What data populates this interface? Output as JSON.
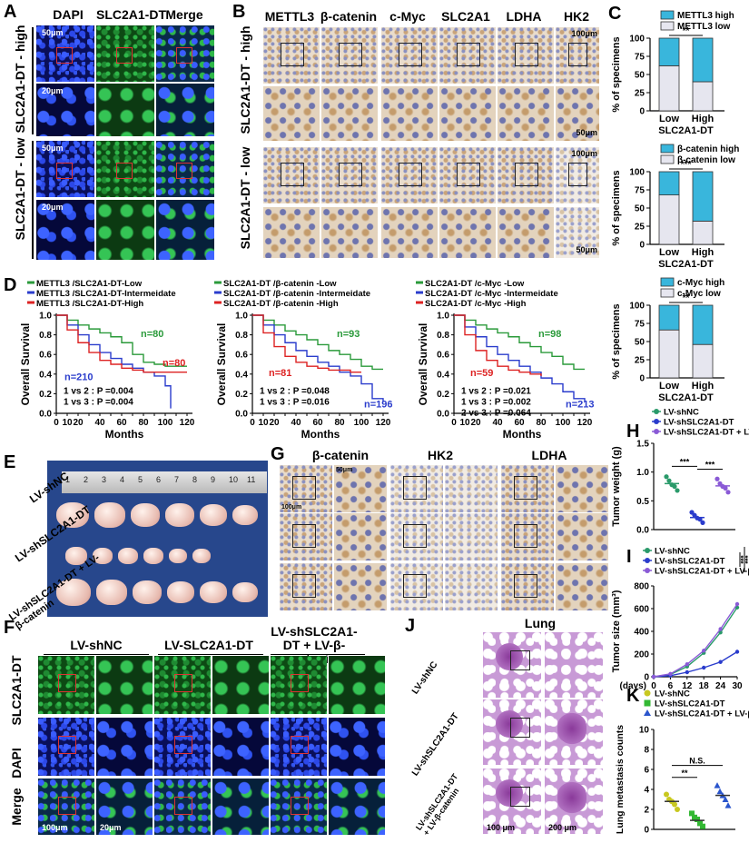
{
  "panels": {
    "A": "A",
    "B": "B",
    "C": "C",
    "D": "D",
    "E": "E",
    "F": "F",
    "G": "G",
    "H": "H",
    "I": "I",
    "J": "J",
    "K": "K"
  },
  "panelA": {
    "columns": [
      "DAPI",
      "SLC2A1-DT",
      "Merge"
    ],
    "rows": [
      "SLC2A1-DT - high",
      "SLC2A1-DT - low"
    ],
    "scale_main": "50μm",
    "scale_zoom": "20μm"
  },
  "panelB": {
    "columns": [
      "METTL3",
      "β-catenin",
      "c-Myc",
      "SLC2A1",
      "LDHA",
      "HK2"
    ],
    "rows": [
      "SLC2A1-DT - high",
      "SLC2A1-DT - low"
    ],
    "scale_main": "100μm",
    "scale_zoom": "50μm"
  },
  "panelC": {
    "ylabel": "% of specimens",
    "xlabel": "SLC2A1-DT",
    "colors": {
      "high": "#39b6dc",
      "low": "#e6e6ef"
    },
    "charts": [
      {
        "legend_high": "METTL3 high",
        "legend_low": "METTL3 low",
        "sig": "**"
      },
      {
        "legend_high": "β-catenin high",
        "legend_low": "β-catenin low",
        "sig": "***"
      },
      {
        "legend_high": "c-Myc high",
        "legend_low": "c-Myc low",
        "sig": "**"
      }
    ]
  },
  "panelD": {
    "ylabel": "Overall Survival",
    "xlabel": "Months",
    "plots": [
      {
        "legend": [
          "METTL3 /SLC2A1-DT-Low",
          "METTL3 /SLC2A1-DT-Intermeidate",
          "METTL3 /SLC2A1-DT-High"
        ],
        "n_low": "n=80",
        "n_int": "n=210",
        "n_high": "n=80",
        "stats": [
          "1 vs 2 : P =0.004",
          "1 vs 3 : P =0.004"
        ]
      },
      {
        "legend": [
          "SLC2A1-DT /β-catenin -Low",
          "SLC2A1-DT /β-catenin -Intermeidate",
          "SLC2A1-DT /β-catenin -High"
        ],
        "n_low": "n=93",
        "n_int": "n=196",
        "n_high": "n=81",
        "stats": [
          "1 vs 2 : P =0.048",
          "1 vs 3 : P =0.016"
        ]
      },
      {
        "legend": [
          "SLC2A1-DT /c-Myc -Low",
          "SLC2A1-DT /c-Myc -Intermeidate",
          "SLC2A1-DT /c-Myc -High"
        ],
        "n_low": "n=98",
        "n_int": "n=213",
        "n_high": "n=59",
        "stats": [
          "1 vs 2 : P =0.021",
          "1 vs 3 : P =0.002",
          "2 vs 3 : P =0.064"
        ]
      }
    ]
  },
  "panelE": {
    "rows": [
      "LV-shNC",
      "LV-shSLC2A1-DT",
      "LV-shSLC2A1-DT + LV-β-catenin"
    ],
    "ruler": [
      "1",
      "2",
      "3",
      "4",
      "5",
      "6",
      "7",
      "8",
      "9",
      "10",
      "11"
    ]
  },
  "panelF": {
    "columns": [
      "LV-shNC",
      "LV-SLC2A1-DT",
      "LV-shSLC2A1-DT + LV-β-catenin"
    ],
    "rows": [
      "SLC2A1-DT",
      "DAPI",
      "Merge"
    ],
    "scale_main": "100μm",
    "scale_zoom": "20μm"
  },
  "panelG": {
    "columns": [
      "β-catenin",
      "HK2",
      "LDHA"
    ],
    "scale_main": "100μm",
    "scale_zoom": "50μm"
  },
  "panelH": {
    "legend": [
      "LV-shNC",
      "LV-shSLC2A1-DT",
      "LV-shSLC2A1-DT + LV-β-catenin"
    ],
    "ylabel": "Tumor weight (g)",
    "sig": [
      "***",
      "***"
    ]
  },
  "panelI": {
    "legend": [
      "LV-shNC",
      "LV-shSLC2A1-DT",
      "LV-shSLC2A1-DT + LV-β-catenin"
    ],
    "ylabel": "Tumor size (mm³)",
    "xlabel": "(days)",
    "sig": [
      "***",
      "***"
    ]
  },
  "panelJ": {
    "title": "Lung",
    "rows": [
      "LV-shNC",
      "LV-shSLC2A1-DT",
      "LV-shSLC2A1-DT + LV-β-catenin"
    ],
    "scale_main": "100 μm",
    "scale_zoom": "200 μm"
  },
  "panelK": {
    "legend": [
      "LV-shNC",
      "LV-shSLC2A1-DT",
      "LV-shSLC2A1-DT + LV-β-catenin"
    ],
    "ylabel": "Lung metastasis counts",
    "sig": [
      "**",
      "N.S."
    ]
  },
  "chart_data": [
    {
      "type": "bar",
      "panel": "C1",
      "categories": [
        "Low",
        "High"
      ],
      "series": [
        {
          "name": "METTL3 low",
          "values": [
            62,
            40
          ]
        },
        {
          "name": "METTL3 high",
          "values": [
            38,
            60
          ]
        }
      ],
      "ylabel": "% of specimens",
      "xlabel": "SLC2A1-DT",
      "ylim": [
        0,
        100
      ],
      "ticks": [
        "0",
        "25",
        "50",
        "75",
        "100"
      ]
    },
    {
      "type": "bar",
      "panel": "C2",
      "categories": [
        "Low",
        "High"
      ],
      "series": [
        {
          "name": "β-catenin low",
          "values": [
            68,
            32
          ]
        },
        {
          "name": "β-catenin high",
          "values": [
            32,
            68
          ]
        }
      ],
      "ylabel": "% of specimens",
      "xlabel": "SLC2A1-DT",
      "ylim": [
        0,
        100
      ],
      "ticks": [
        "0",
        "25",
        "50",
        "75",
        "100"
      ]
    },
    {
      "type": "bar",
      "panel": "C3",
      "categories": [
        "Low",
        "High"
      ],
      "series": [
        {
          "name": "c-Myc low",
          "values": [
            66,
            46
          ]
        },
        {
          "name": "c-Myc high",
          "values": [
            34,
            54
          ]
        }
      ],
      "ylabel": "% of specimens",
      "xlabel": "SLC2A1-DT",
      "ylim": [
        0,
        100
      ],
      "ticks": [
        "0",
        "25",
        "50",
        "75",
        "100"
      ]
    },
    {
      "type": "line",
      "panel": "D-survival",
      "x_ticks": [
        "0",
        "10",
        "20",
        "30",
        "40",
        "50",
        "60",
        "70",
        "80",
        "90",
        "100",
        "110",
        "120"
      ],
      "y_ticks": [
        "0.0",
        "0.2",
        "0.4",
        "0.6",
        "0.8",
        "1.0"
      ],
      "curves": [
        {
          "low": [
            [
              0,
              1
            ],
            [
              10,
              0.95
            ],
            [
              20,
              0.9
            ],
            [
              30,
              0.86
            ],
            [
              40,
              0.82
            ],
            [
              50,
              0.78
            ],
            [
              60,
              0.72
            ],
            [
              70,
              0.6
            ],
            [
              80,
              0.52
            ],
            [
              90,
              0.5
            ],
            [
              100,
              0.48
            ],
            [
              110,
              0.48
            ],
            [
              120,
              0.48
            ]
          ],
          "int": [
            [
              0,
              1
            ],
            [
              10,
              0.9
            ],
            [
              20,
              0.8
            ],
            [
              30,
              0.7
            ],
            [
              40,
              0.62
            ],
            [
              50,
              0.56
            ],
            [
              60,
              0.5
            ],
            [
              70,
              0.46
            ],
            [
              80,
              0.42
            ],
            [
              90,
              0.38
            ],
            [
              100,
              0.28
            ],
            [
              105,
              0.05
            ]
          ],
          "high": [
            [
              0,
              1
            ],
            [
              10,
              0.85
            ],
            [
              20,
              0.72
            ],
            [
              30,
              0.62
            ],
            [
              40,
              0.54
            ],
            [
              50,
              0.5
            ],
            [
              60,
              0.46
            ],
            [
              70,
              0.44
            ],
            [
              80,
              0.42
            ],
            [
              90,
              0.42
            ],
            [
              100,
              0.42
            ],
            [
              120,
              0.42
            ]
          ]
        },
        {
          "low": [
            [
              0,
              1
            ],
            [
              10,
              0.95
            ],
            [
              20,
              0.9
            ],
            [
              30,
              0.84
            ],
            [
              40,
              0.8
            ],
            [
              50,
              0.75
            ],
            [
              60,
              0.7
            ],
            [
              70,
              0.64
            ],
            [
              80,
              0.6
            ],
            [
              90,
              0.55
            ],
            [
              100,
              0.48
            ],
            [
              110,
              0.45
            ],
            [
              120,
              0.45
            ]
          ],
          "int": [
            [
              0,
              1
            ],
            [
              10,
              0.9
            ],
            [
              20,
              0.8
            ],
            [
              30,
              0.72
            ],
            [
              40,
              0.64
            ],
            [
              50,
              0.58
            ],
            [
              60,
              0.52
            ],
            [
              70,
              0.48
            ],
            [
              80,
              0.42
            ],
            [
              90,
              0.38
            ],
            [
              100,
              0.3
            ],
            [
              110,
              0.15
            ],
            [
              120,
              0.12
            ]
          ],
          "high": [
            [
              0,
              1
            ],
            [
              10,
              0.82
            ],
            [
              20,
              0.68
            ],
            [
              30,
              0.58
            ],
            [
              40,
              0.52
            ],
            [
              50,
              0.48
            ],
            [
              60,
              0.46
            ],
            [
              70,
              0.44
            ],
            [
              80,
              0.44
            ],
            [
              90,
              0.42
            ],
            [
              100,
              0.42
            ]
          ]
        },
        {
          "low": [
            [
              0,
              1
            ],
            [
              10,
              0.95
            ],
            [
              20,
              0.9
            ],
            [
              30,
              0.86
            ],
            [
              40,
              0.82
            ],
            [
              50,
              0.78
            ],
            [
              60,
              0.72
            ],
            [
              70,
              0.68
            ],
            [
              80,
              0.62
            ],
            [
              90,
              0.58
            ],
            [
              100,
              0.5
            ],
            [
              110,
              0.45
            ],
            [
              120,
              0.45
            ]
          ],
          "int": [
            [
              0,
              1
            ],
            [
              10,
              0.88
            ],
            [
              20,
              0.78
            ],
            [
              30,
              0.68
            ],
            [
              40,
              0.6
            ],
            [
              50,
              0.54
            ],
            [
              60,
              0.48
            ],
            [
              70,
              0.42
            ],
            [
              80,
              0.36
            ],
            [
              90,
              0.3
            ],
            [
              100,
              0.22
            ],
            [
              110,
              0.15
            ],
            [
              120,
              0.12
            ]
          ],
          "high": [
            [
              0,
              1
            ],
            [
              10,
              0.8
            ],
            [
              20,
              0.64
            ],
            [
              30,
              0.54
            ],
            [
              40,
              0.48
            ],
            [
              50,
              0.44
            ],
            [
              60,
              0.42
            ],
            [
              70,
              0.4
            ],
            [
              80,
              0.38
            ]
          ]
        }
      ],
      "colors": {
        "low": "#2a9a3a",
        "int": "#2a3ccc",
        "high": "#dd2222"
      }
    },
    {
      "type": "scatter",
      "panel": "H",
      "categories": [
        "LV-shNC",
        "LV-shSLC2A1-DT",
        "LV-shSLC2A1-DT + LV-β-catenin"
      ],
      "values": [
        [
          0.92,
          0.85,
          0.78,
          0.75,
          0.68
        ],
        [
          0.3,
          0.25,
          0.2,
          0.18,
          0.12
        ],
        [
          0.88,
          0.8,
          0.75,
          0.72,
          0.65
        ]
      ],
      "means": [
        0.8,
        0.21,
        0.76
      ],
      "ylabel": "Tumor weight (g)",
      "ylim": [
        0,
        1.5
      ],
      "ticks": [
        "0.0",
        "0.5",
        "1.0",
        "1.5"
      ],
      "colors": [
        "#2a9a6a",
        "#2a3ccc",
        "#8a5ad6"
      ]
    },
    {
      "type": "line",
      "panel": "I",
      "x": [
        0,
        6,
        12,
        18,
        24,
        30
      ],
      "series": [
        {
          "name": "LV-shNC",
          "values": [
            0,
            20,
            90,
            210,
            390,
            610
          ]
        },
        {
          "name": "LV-shSLC2A1-DT",
          "values": [
            0,
            10,
            40,
            80,
            130,
            220
          ]
        },
        {
          "name": "LV-shSLC2A1-DT + LV-β-catenin",
          "values": [
            0,
            25,
            110,
            230,
            420,
            640
          ]
        }
      ],
      "ylabel": "Tumor size (mm³)",
      "xlabel": "(days)",
      "ylim": [
        0,
        800
      ],
      "x_ticks": [
        "0",
        "6",
        "12",
        "18",
        "24",
        "30"
      ],
      "y_ticks": [
        "0",
        "200",
        "400",
        "600",
        "800"
      ],
      "colors": [
        "#2a9a6a",
        "#2a3ccc",
        "#8a5ad6"
      ]
    },
    {
      "type": "scatter",
      "panel": "K",
      "categories": [
        "LV-shNC",
        "LV-shSLC2A1-DT",
        "LV-shSLC2A1-DT + LV-β-catenin"
      ],
      "values": [
        [
          3.5,
          3,
          2.8,
          2.5,
          2
        ],
        [
          1.6,
          1.2,
          1,
          0.6,
          0.3
        ],
        [
          4.4,
          3.8,
          3.4,
          3,
          2.4
        ]
      ],
      "means": [
        2.8,
        0.9,
        3.4
      ],
      "ylabel": "Lung metastasis counts",
      "ylim": [
        0,
        10
      ],
      "ticks": [
        "0",
        "2",
        "4",
        "6",
        "8",
        "10"
      ],
      "colors": [
        "#c8c820",
        "#33b833",
        "#2a55cc"
      ]
    }
  ]
}
